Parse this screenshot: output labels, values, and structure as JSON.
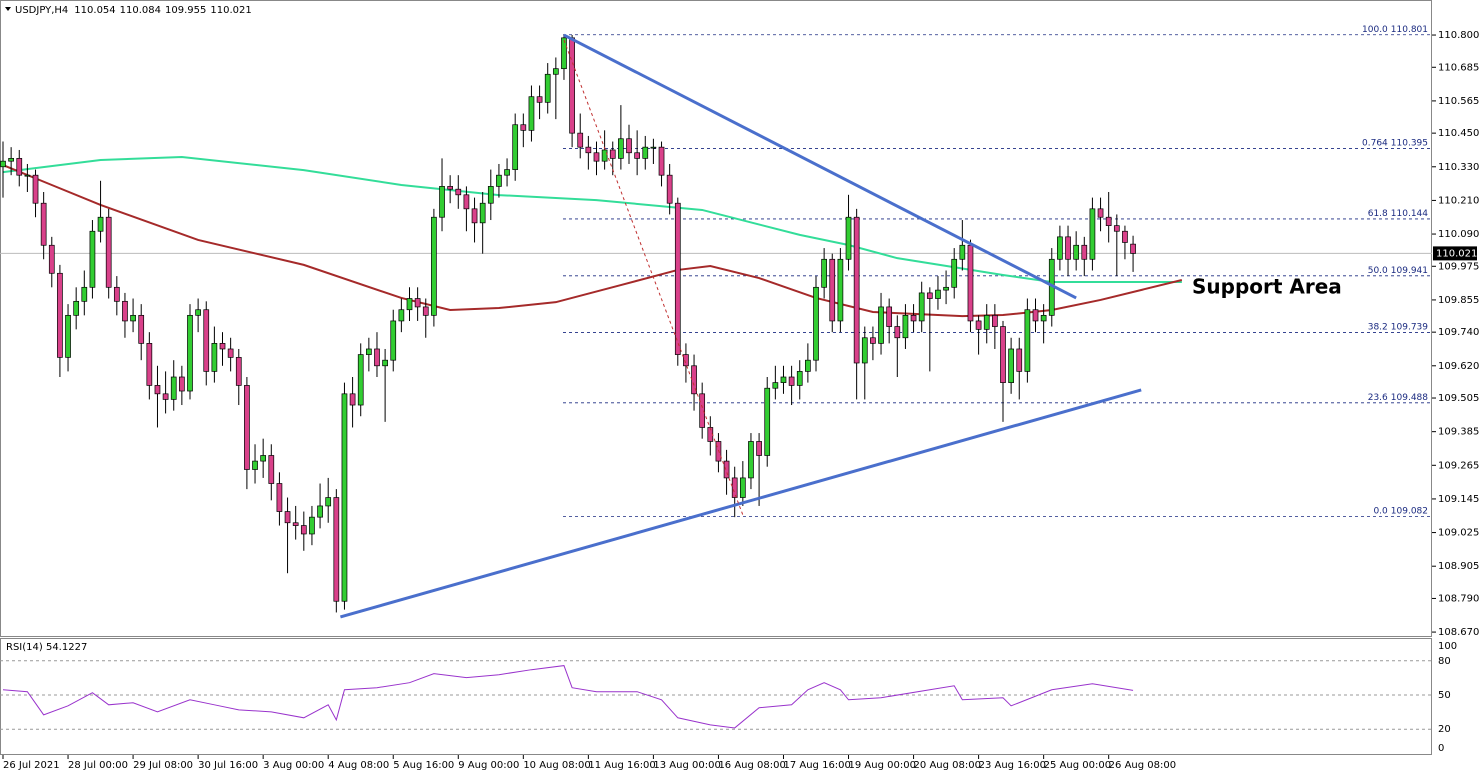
{
  "chart_data": {
    "type": "candlestick",
    "symbol": "USDJPY,H4",
    "bull_color": "#32cd32",
    "bear_color": "#d9418a",
    "candles": [
      [
        110.33,
        110.42,
        110.22,
        110.35
      ],
      [
        110.35,
        110.4,
        110.3,
        110.36
      ],
      [
        110.36,
        110.39,
        110.26,
        110.3
      ],
      [
        110.3,
        110.34,
        110.24,
        110.3
      ],
      [
        110.3,
        110.32,
        110.15,
        110.2
      ],
      [
        110.2,
        110.24,
        110.0,
        110.05
      ],
      [
        110.05,
        110.08,
        109.9,
        109.95
      ],
      [
        109.95,
        109.98,
        109.58,
        109.65
      ],
      [
        109.65,
        109.84,
        109.6,
        109.8
      ],
      [
        109.8,
        109.9,
        109.75,
        109.85
      ],
      [
        109.85,
        109.96,
        109.8,
        109.9
      ],
      [
        109.9,
        110.14,
        109.86,
        110.1
      ],
      [
        110.1,
        110.28,
        110.06,
        110.15
      ],
      [
        110.15,
        110.18,
        109.86,
        109.9
      ],
      [
        109.9,
        109.94,
        109.8,
        109.85
      ],
      [
        109.85,
        109.88,
        109.72,
        109.78
      ],
      [
        109.78,
        109.86,
        109.74,
        109.8
      ],
      [
        109.8,
        109.84,
        109.64,
        109.7
      ],
      [
        109.7,
        109.74,
        109.5,
        109.55
      ],
      [
        109.55,
        109.62,
        109.4,
        109.52
      ],
      [
        109.52,
        109.6,
        109.45,
        109.5
      ],
      [
        109.5,
        109.64,
        109.46,
        109.58
      ],
      [
        109.58,
        109.62,
        109.48,
        109.53
      ],
      [
        109.53,
        109.84,
        109.5,
        109.8
      ],
      [
        109.8,
        109.86,
        109.74,
        109.82
      ],
      [
        109.82,
        109.85,
        109.55,
        109.6
      ],
      [
        109.6,
        109.76,
        109.56,
        109.7
      ],
      [
        109.7,
        109.74,
        109.62,
        109.68
      ],
      [
        109.68,
        109.72,
        109.6,
        109.65
      ],
      [
        109.65,
        109.68,
        109.48,
        109.55
      ],
      [
        109.55,
        109.58,
        109.18,
        109.25
      ],
      [
        109.25,
        109.34,
        109.2,
        109.28
      ],
      [
        109.28,
        109.36,
        109.22,
        109.3
      ],
      [
        109.3,
        109.34,
        109.14,
        109.2
      ],
      [
        109.2,
        109.24,
        109.05,
        109.1
      ],
      [
        109.1,
        109.15,
        108.88,
        109.06
      ],
      [
        109.06,
        109.12,
        109.0,
        109.05
      ],
      [
        109.05,
        109.1,
        108.96,
        109.02
      ],
      [
        109.02,
        109.12,
        108.98,
        109.08
      ],
      [
        109.08,
        109.2,
        109.04,
        109.12
      ],
      [
        109.12,
        109.22,
        109.06,
        109.15
      ],
      [
        109.15,
        109.18,
        108.74,
        108.78
      ],
      [
        108.78,
        109.56,
        108.75,
        109.52
      ],
      [
        109.52,
        109.58,
        109.4,
        109.48
      ],
      [
        109.48,
        109.7,
        109.44,
        109.66
      ],
      [
        109.66,
        109.72,
        109.6,
        109.68
      ],
      [
        109.68,
        109.74,
        109.58,
        109.62
      ],
      [
        109.62,
        109.68,
        109.42,
        109.64
      ],
      [
        109.64,
        109.82,
        109.6,
        109.78
      ],
      [
        109.78,
        109.86,
        109.74,
        109.82
      ],
      [
        109.82,
        109.9,
        109.78,
        109.86
      ],
      [
        109.86,
        109.9,
        109.78,
        109.83
      ],
      [
        109.83,
        109.86,
        109.72,
        109.8
      ],
      [
        109.8,
        110.18,
        109.76,
        110.15
      ],
      [
        110.15,
        110.36,
        110.1,
        110.26
      ],
      [
        110.26,
        110.3,
        110.2,
        110.25
      ],
      [
        110.25,
        110.3,
        110.18,
        110.23
      ],
      [
        110.23,
        110.26,
        110.1,
        110.18
      ],
      [
        110.18,
        110.22,
        110.06,
        110.13
      ],
      [
        110.13,
        110.24,
        110.02,
        110.2
      ],
      [
        110.2,
        110.32,
        110.14,
        110.26
      ],
      [
        110.26,
        110.34,
        110.22,
        110.3
      ],
      [
        110.3,
        110.36,
        110.26,
        110.32
      ],
      [
        110.32,
        110.52,
        110.28,
        110.48
      ],
      [
        110.48,
        110.52,
        110.4,
        110.46
      ],
      [
        110.46,
        110.62,
        110.42,
        110.58
      ],
      [
        110.58,
        110.62,
        110.5,
        110.56
      ],
      [
        110.56,
        110.7,
        110.52,
        110.66
      ],
      [
        110.66,
        110.72,
        110.5,
        110.68
      ],
      [
        110.68,
        110.8,
        110.64,
        110.79
      ],
      [
        110.79,
        110.8,
        110.4,
        110.45
      ],
      [
        110.45,
        110.52,
        110.36,
        110.4
      ],
      [
        110.4,
        110.44,
        110.32,
        110.38
      ],
      [
        110.38,
        110.42,
        110.3,
        110.35
      ],
      [
        110.35,
        110.46,
        110.32,
        110.39
      ],
      [
        110.39,
        110.42,
        110.3,
        110.36
      ],
      [
        110.36,
        110.55,
        110.32,
        110.43
      ],
      [
        110.43,
        110.48,
        110.34,
        110.38
      ],
      [
        110.38,
        110.46,
        110.3,
        110.36
      ],
      [
        110.36,
        110.44,
        110.32,
        110.4
      ],
      [
        110.4,
        110.43,
        110.34,
        110.4
      ],
      [
        110.4,
        110.42,
        110.26,
        110.3
      ],
      [
        110.3,
        110.34,
        110.16,
        110.2
      ],
      [
        110.2,
        110.22,
        109.62,
        109.66
      ],
      [
        109.66,
        109.7,
        109.56,
        109.62
      ],
      [
        109.62,
        109.66,
        109.46,
        109.52
      ],
      [
        109.52,
        109.56,
        109.36,
        109.4
      ],
      [
        109.4,
        109.44,
        109.3,
        109.35
      ],
      [
        109.35,
        109.38,
        109.24,
        109.28
      ],
      [
        109.28,
        109.32,
        109.16,
        109.22
      ],
      [
        109.22,
        109.26,
        109.08,
        109.15
      ],
      [
        109.15,
        109.28,
        109.12,
        109.22
      ],
      [
        109.22,
        109.38,
        109.18,
        109.35
      ],
      [
        109.35,
        109.38,
        109.12,
        109.3
      ],
      [
        109.3,
        109.58,
        109.26,
        109.54
      ],
      [
        109.54,
        109.62,
        109.5,
        109.56
      ],
      [
        109.56,
        109.62,
        109.52,
        109.58
      ],
      [
        109.58,
        109.62,
        109.48,
        109.55
      ],
      [
        109.55,
        109.64,
        109.5,
        109.6
      ],
      [
        109.6,
        109.7,
        109.56,
        109.64
      ],
      [
        109.64,
        109.94,
        109.6,
        109.9
      ],
      [
        109.9,
        110.04,
        109.86,
        110.0
      ],
      [
        110.0,
        110.02,
        109.74,
        109.78
      ],
      [
        109.78,
        110.04,
        109.74,
        110.0
      ],
      [
        110.0,
        110.23,
        109.96,
        110.15
      ],
      [
        110.15,
        110.18,
        109.5,
        109.63
      ],
      [
        109.63,
        109.76,
        109.5,
        109.72
      ],
      [
        109.72,
        109.76,
        109.64,
        109.7
      ],
      [
        109.7,
        109.88,
        109.66,
        109.83
      ],
      [
        109.83,
        109.86,
        109.7,
        109.76
      ],
      [
        109.76,
        109.8,
        109.58,
        109.72
      ],
      [
        109.72,
        109.84,
        109.68,
        109.8
      ],
      [
        109.8,
        109.84,
        109.74,
        109.78
      ],
      [
        109.78,
        109.92,
        109.74,
        109.88
      ],
      [
        109.88,
        109.9,
        109.6,
        109.86
      ],
      [
        109.86,
        109.94,
        109.82,
        109.89
      ],
      [
        109.89,
        109.96,
        109.84,
        109.9
      ],
      [
        109.9,
        110.04,
        109.86,
        110.0
      ],
      [
        110.0,
        110.14,
        109.96,
        110.05
      ],
      [
        110.05,
        110.07,
        109.74,
        109.78
      ],
      [
        109.78,
        109.8,
        109.66,
        109.75
      ],
      [
        109.75,
        109.84,
        109.7,
        109.8
      ],
      [
        109.8,
        109.84,
        109.68,
        109.76
      ],
      [
        109.76,
        109.78,
        109.42,
        109.56
      ],
      [
        109.56,
        109.72,
        109.52,
        109.68
      ],
      [
        109.68,
        109.72,
        109.5,
        109.6
      ],
      [
        109.6,
        109.86,
        109.56,
        109.82
      ],
      [
        109.82,
        109.86,
        109.74,
        109.78
      ],
      [
        109.78,
        109.84,
        109.7,
        109.8
      ],
      [
        109.8,
        110.04,
        109.76,
        110.0
      ],
      [
        110.0,
        110.12,
        109.96,
        110.08
      ],
      [
        110.08,
        110.12,
        109.94,
        110.0
      ],
      [
        110.0,
        110.1,
        109.96,
        110.05
      ],
      [
        110.05,
        110.08,
        109.94,
        110.0
      ],
      [
        110.0,
        110.22,
        109.96,
        110.18
      ],
      [
        110.18,
        110.22,
        110.1,
        110.15
      ],
      [
        110.15,
        110.24,
        110.06,
        110.12
      ],
      [
        110.12,
        110.16,
        109.94,
        110.1
      ],
      [
        110.1,
        110.12,
        110.0,
        110.06
      ],
      [
        110.054,
        110.084,
        109.955,
        110.021
      ]
    ],
    "ylim": [
      108.656,
      110.925
    ],
    "yticks": [
      {
        "value": 110.8,
        "label": "110.800"
      },
      110.685,
      110.565,
      {
        "value": 110.45,
        "label": "110.450"
      },
      {
        "value": 110.33,
        "label": "110.330"
      },
      {
        "value": 110.21,
        "label": "110.210"
      },
      {
        "value": 110.09,
        "label": "110.090"
      },
      109.975,
      109.855,
      {
        "value": 109.74,
        "label": "109.740"
      },
      {
        "value": 109.62,
        "label": "109.620"
      },
      109.505,
      109.385,
      109.265,
      109.145,
      109.025,
      108.905,
      {
        "value": 108.79,
        "label": "108.790"
      },
      {
        "value": 108.67,
        "label": "108.670"
      }
    ],
    "x_ticks": [
      {
        "value": 0,
        "label": "26 Jul 2021"
      },
      {
        "value": 8,
        "label": "28 Jul 00:00"
      },
      {
        "value": 16,
        "label": "29 Jul 08:00"
      },
      {
        "value": 24,
        "label": "30 Jul 16:00"
      },
      {
        "value": 32,
        "label": "3 Aug 00:00"
      },
      {
        "value": 40,
        "label": "4 Aug 08:00"
      },
      {
        "value": 48,
        "label": "5 Aug 16:00"
      },
      {
        "value": 56,
        "label": "9 Aug 00:00"
      },
      {
        "value": 64,
        "label": "10 Aug 08:00"
      },
      {
        "value": 72,
        "label": "11 Aug 16:00"
      },
      {
        "value": 80,
        "label": "13 Aug 00:00"
      },
      {
        "value": 88,
        "label": "16 Aug 08:00"
      },
      {
        "value": 96,
        "label": "17 Aug 16:00"
      },
      {
        "value": 104,
        "label": "19 Aug 00:00"
      },
      {
        "value": 112,
        "label": "20 Aug 08:00"
      },
      {
        "value": 120,
        "label": "23 Aug 16:00"
      },
      {
        "value": 128,
        "label": "25 Aug 00:00"
      },
      {
        "value": 136,
        "label": "26 Aug 08:00"
      }
    ],
    "moving_averages": [
      {
        "color": "#33dd99",
        "index": [
          0,
          12,
          22,
          37,
          49,
          61,
          73,
          86,
          98,
          104,
          110,
          123,
          129,
          145
        ],
        "values": [
          110.311,
          110.354,
          110.365,
          110.318,
          110.265,
          110.229,
          110.211,
          110.176,
          110.087,
          110.051,
          110.004,
          109.944,
          109.919,
          109.919
        ]
      },
      {
        "color": "#a52a2a",
        "index": [
          0,
          6,
          12,
          24,
          37,
          49,
          55,
          61,
          68,
          76,
          83,
          87,
          93,
          100,
          107,
          118,
          123,
          129,
          135,
          145
        ],
        "values": [
          110.336,
          110.265,
          110.194,
          110.069,
          109.98,
          109.862,
          109.819,
          109.826,
          109.847,
          109.908,
          109.962,
          109.976,
          109.933,
          109.862,
          109.812,
          109.797,
          109.801,
          109.819,
          109.855,
          109.926
        ]
      }
    ],
    "fibonacci": [
      {
        "level": "100.0",
        "price": 110.801
      },
      {
        "level": "0.764",
        "price": 110.395
      },
      {
        "level": "61.8",
        "price": 110.144
      },
      {
        "level": "50.0",
        "price": 109.941
      },
      {
        "level": "38.2",
        "price": 109.739
      },
      {
        "level": "23.6",
        "price": 109.488
      },
      {
        "level": "0.0",
        "price": 109.082
      }
    ],
    "trendlines": [
      {
        "color": "#4a6fcc",
        "style": "solid",
        "points": [
          [
            69,
            110.8
          ],
          [
            132,
            109.862
          ]
        ]
      },
      {
        "color": "#4a6fcc",
        "style": "solid",
        "points": [
          [
            41.5,
            108.724
          ],
          [
            140,
            109.534
          ]
        ]
      },
      {
        "color": "#c03030",
        "style": "dotted",
        "points": [
          [
            69,
            110.782
          ],
          [
            91,
            109.088
          ]
        ]
      }
    ],
    "annotation": {
      "text": "Support Area",
      "color": "#22aa44"
    },
    "rsi": {
      "label": "RSI(14) 54.1227",
      "color": "#9933cc",
      "ylim": [
        0,
        100
      ],
      "yticks": [
        100,
        80,
        50,
        20,
        0
      ],
      "index": [
        0,
        3,
        5,
        8,
        11,
        13,
        16,
        19,
        23,
        26,
        29,
        33,
        37,
        40,
        41,
        42,
        46,
        50,
        53,
        57,
        61,
        65,
        69,
        70,
        73,
        78,
        81,
        83,
        87,
        90,
        93,
        97,
        99,
        101,
        103,
        104,
        108,
        114,
        117,
        118,
        123,
        124,
        129,
        134,
        139
      ],
      "values": [
        54.6,
        52.9,
        32.6,
        40.5,
        52.0,
        41.4,
        43.2,
        35.2,
        45.8,
        41.4,
        37.0,
        35.2,
        30.0,
        41.4,
        28.2,
        54.6,
        56.4,
        60.8,
        68.7,
        65.2,
        67.8,
        72.2,
        75.8,
        56.4,
        52.9,
        52.9,
        45.8,
        30.0,
        23.8,
        21.1,
        38.8,
        41.4,
        54.6,
        60.8,
        54.6,
        45.8,
        47.6,
        54.6,
        58.1,
        45.8,
        47.6,
        40.5,
        54.6,
        59.9,
        54.1
      ]
    }
  }
}
